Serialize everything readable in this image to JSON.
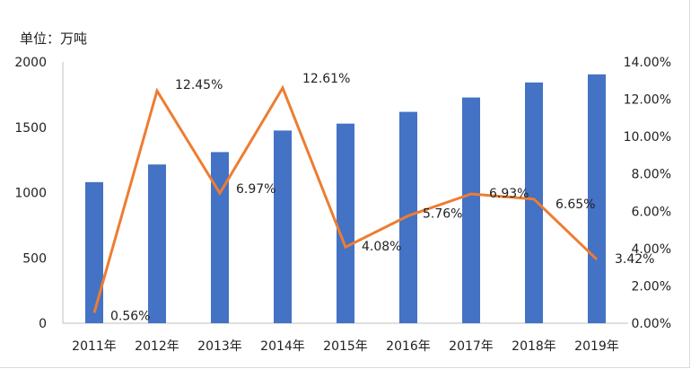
{
  "unit_label": "单位：万吨",
  "chart_data": {
    "type": "bar+line",
    "categories": [
      "2011年",
      "2012年",
      "2013年",
      "2014年",
      "2015年",
      "2016年",
      "2017年",
      "2018年",
      "2019年"
    ],
    "series": [
      {
        "values": [
          1080,
          1215,
          1310,
          1475,
          1528,
          1618,
          1728,
          1843,
          1905
        ],
        "axis": "left",
        "color": "#4472C4",
        "kind": "bar"
      },
      {
        "values": [
          0.56,
          12.45,
          6.97,
          12.61,
          4.08,
          5.76,
          6.93,
          6.65,
          3.42
        ],
        "labels": [
          "0.56%",
          "12.45%",
          "6.97%",
          "12.61%",
          "4.08%",
          "5.76%",
          "6.93%",
          "6.65%",
          "3.42%"
        ],
        "axis": "right",
        "color": "#ED7D31",
        "kind": "line"
      }
    ],
    "y_left": {
      "min": 0,
      "max": 2000,
      "ticks": [
        "0",
        "500",
        "1000",
        "1500",
        "2000"
      ],
      "tick_values": [
        0,
        500,
        1000,
        1500,
        2000
      ]
    },
    "y_right": {
      "min": 0,
      "max": 14,
      "ticks": [
        "0.00%",
        "2.00%",
        "4.00%",
        "6.00%",
        "8.00%",
        "10.00%",
        "12.00%",
        "14.00%"
      ],
      "tick_values": [
        0,
        2,
        4,
        6,
        8,
        10,
        12,
        14
      ]
    },
    "grid": false,
    "legend": "none"
  }
}
